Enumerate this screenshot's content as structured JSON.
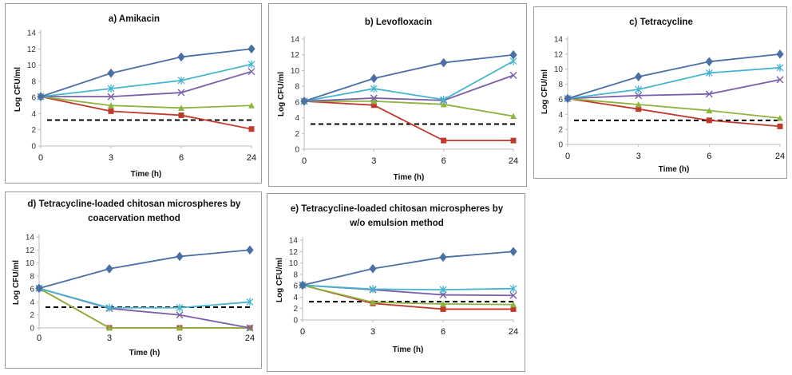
{
  "colors": {
    "control": "#4a6fa5",
    "series_cyan": "#45b5cf",
    "series_purple": "#7a5ea8",
    "series_green": "#8db43d",
    "series_red": "#c0392b",
    "threshold": "#000000"
  },
  "chart_data": [
    {
      "type": "line",
      "title": "a) Amikacin",
      "xlabel": "Time (h)",
      "ylabel": "Log CFU/ml",
      "x": [
        "0",
        "3",
        "6",
        "24"
      ],
      "ylim": [
        0,
        14
      ],
      "yticks": [
        0,
        2,
        4,
        6,
        8,
        10,
        12,
        14
      ],
      "threshold": 3.2,
      "series": [
        {
          "color": "#4a6fa5",
          "marker": "diamond",
          "values": [
            6.1,
            9.0,
            11.0,
            12.0
          ]
        },
        {
          "color": "#45b5cf",
          "marker": "asterisk",
          "values": [
            6.1,
            7.1,
            8.1,
            10.1
          ]
        },
        {
          "color": "#7a5ea8",
          "marker": "x",
          "values": [
            6.1,
            6.1,
            6.6,
            9.2
          ]
        },
        {
          "color": "#8db43d",
          "marker": "triangle",
          "values": [
            6.1,
            5.0,
            4.7,
            5.0
          ]
        },
        {
          "color": "#c0392b",
          "marker": "square",
          "values": [
            6.1,
            4.3,
            3.8,
            2.1
          ]
        }
      ]
    },
    {
      "type": "line",
      "title": "b) Levofloxacin",
      "xlabel": "Time (h)",
      "ylabel": "Log CFU/ml",
      "x": [
        "0",
        "3",
        "6",
        "24"
      ],
      "ylim": [
        0,
        14
      ],
      "yticks": [
        0,
        2,
        4,
        6,
        8,
        10,
        12,
        14
      ],
      "threshold": 3.2,
      "series": [
        {
          "color": "#4a6fa5",
          "marker": "diamond",
          "values": [
            6.1,
            9.0,
            11.0,
            12.0
          ]
        },
        {
          "color": "#45b5cf",
          "marker": "asterisk",
          "values": [
            6.1,
            7.7,
            6.3,
            11.2
          ]
        },
        {
          "color": "#7a5ea8",
          "marker": "x",
          "values": [
            6.1,
            6.5,
            6.2,
            9.4
          ]
        },
        {
          "color": "#8db43d",
          "marker": "triangle",
          "values": [
            6.1,
            6.1,
            5.7,
            4.2
          ]
        },
        {
          "color": "#c0392b",
          "marker": "square",
          "values": [
            6.1,
            5.6,
            1.1,
            1.1
          ]
        }
      ]
    },
    {
      "type": "line",
      "title": "c) Tetracycline",
      "xlabel": "Time (h)",
      "ylabel": "Log CFU/ml",
      "x": [
        "0",
        "3",
        "6",
        "24"
      ],
      "ylim": [
        0,
        14
      ],
      "yticks": [
        0,
        2,
        4,
        6,
        8,
        10,
        12,
        14
      ],
      "threshold": 3.2,
      "series": [
        {
          "color": "#4a6fa5",
          "marker": "diamond",
          "values": [
            6.1,
            9.0,
            11.0,
            12.0
          ]
        },
        {
          "color": "#45b5cf",
          "marker": "asterisk",
          "values": [
            6.1,
            7.3,
            9.5,
            10.2
          ]
        },
        {
          "color": "#7a5ea8",
          "marker": "x",
          "values": [
            6.1,
            6.5,
            6.7,
            8.6
          ]
        },
        {
          "color": "#8db43d",
          "marker": "triangle",
          "values": [
            6.1,
            5.3,
            4.5,
            3.5
          ]
        },
        {
          "color": "#c0392b",
          "marker": "square",
          "values": [
            6.1,
            4.7,
            3.2,
            2.4
          ]
        }
      ]
    },
    {
      "type": "line",
      "title": "d) Tetracycline-loaded chitosan microspheres by coacervation method",
      "title_lines": [
        "d) Tetracycline-loaded chitosan microspheres by",
        "coacervation method"
      ],
      "xlabel": "Time (h)",
      "ylabel": "Log CFU/ml",
      "x": [
        "0",
        "3",
        "6",
        "24"
      ],
      "ylim": [
        0,
        14
      ],
      "yticks": [
        0,
        2,
        4,
        6,
        8,
        10,
        12,
        14
      ],
      "threshold": 3.2,
      "series": [
        {
          "color": "#4a6fa5",
          "marker": "diamond",
          "values": [
            6.1,
            9.1,
            11.0,
            12.0
          ]
        },
        {
          "color": "#45b5cf",
          "marker": "asterisk",
          "values": [
            6.1,
            3.1,
            3.1,
            4.0
          ]
        },
        {
          "color": "#7a5ea8",
          "marker": "x",
          "values": [
            6.1,
            3.0,
            2.0,
            0.0
          ]
        },
        {
          "color": "#8db43d",
          "marker": "triangle",
          "values": [
            6.1,
            0.0,
            0.0,
            0.0
          ]
        },
        {
          "color": "#c0392b",
          "marker": "square",
          "values": [
            6.1,
            0.0,
            0.0,
            0.0
          ]
        }
      ]
    },
    {
      "type": "line",
      "title": "e) Tetracycline-loaded chitosan microspheres by w/o emulsion method",
      "title_lines": [
        "e) Tetracycline-loaded chitosan microspheres by",
        "w/o emulsion method"
      ],
      "xlabel": "Time (h)",
      "ylabel": "Log CFU/ml",
      "x": [
        "0",
        "3",
        "6",
        "24"
      ],
      "ylim": [
        0,
        14
      ],
      "yticks": [
        0,
        2,
        4,
        6,
        8,
        10,
        12,
        14
      ],
      "threshold": 3.2,
      "series": [
        {
          "color": "#4a6fa5",
          "marker": "diamond",
          "values": [
            6.1,
            9.0,
            11.0,
            12.0
          ]
        },
        {
          "color": "#45b5cf",
          "marker": "asterisk",
          "values": [
            6.1,
            5.4,
            5.3,
            5.5
          ]
        },
        {
          "color": "#7a5ea8",
          "marker": "x",
          "values": [
            6.1,
            5.3,
            4.4,
            4.3
          ]
        },
        {
          "color": "#8db43d",
          "marker": "triangle",
          "values": [
            6.1,
            3.1,
            2.8,
            2.7
          ]
        },
        {
          "color": "#c0392b",
          "marker": "square",
          "values": [
            6.1,
            2.9,
            1.9,
            1.9
          ]
        }
      ]
    }
  ]
}
